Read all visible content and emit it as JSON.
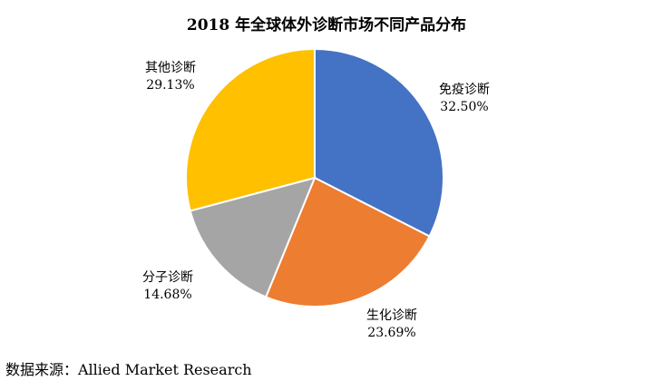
{
  "chart_data": {
    "type": "pie",
    "title": "2018 年全球体外诊断市场不同产品分布",
    "slices": [
      {
        "label": "免疫诊断",
        "value": 32.5,
        "value_text": "32.50%",
        "color": "#4472C4"
      },
      {
        "label": "生化诊断",
        "value": 23.69,
        "value_text": "23.69%",
        "color": "#ED7D31"
      },
      {
        "label": "分子诊断",
        "value": 14.68,
        "value_text": "14.68%",
        "color": "#A5A5A5"
      },
      {
        "label": "其他诊断",
        "value": 29.13,
        "value_text": "29.13%",
        "color": "#FFC000"
      }
    ],
    "start": "12 o'clock",
    "direction": "clockwise"
  },
  "source": "数据来源：Allied Market Research"
}
